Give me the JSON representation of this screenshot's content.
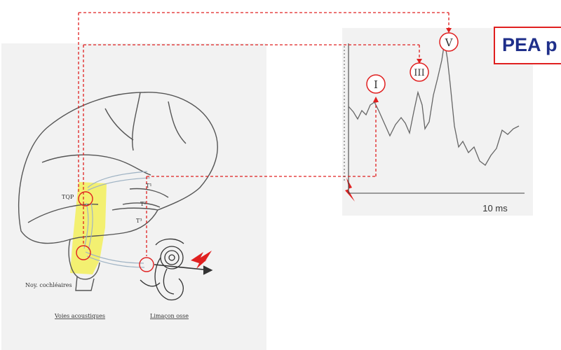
{
  "title": "PEA p",
  "waveform": {
    "peaks": [
      "I",
      "III",
      "V"
    ],
    "time_scale": "10 ms"
  },
  "brain": {
    "labels": {
      "tqp": "TQP",
      "t1": "T¹",
      "t2": "T²",
      "t3": "T³",
      "noyaux": "Noy. cochléaires",
      "voies": "Voies acoustiques",
      "limacon": "Limaçon osse"
    }
  },
  "colors": {
    "dashed_lines": "#e02020",
    "title_text": "#1f2f8a",
    "highlight": "#f3f05a"
  }
}
